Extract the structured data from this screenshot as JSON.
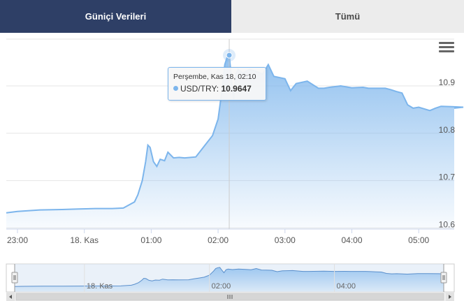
{
  "tabs": [
    {
      "label": "Güniçi Verileri",
      "active": true
    },
    {
      "label": "Tümü",
      "active": false
    }
  ],
  "tooltip": {
    "header": "Perşembe, Kas 18, 02:10",
    "series": "USD/TRY",
    "value": "10.9647"
  },
  "colors": {
    "accent": "#2e3f66",
    "series": "#7cb5ec"
  },
  "chart_data": {
    "type": "area",
    "series": [
      {
        "name": "USD/TRY",
        "x": [
          "22:53",
          "23:00",
          "23:20",
          "23:40",
          "23:55",
          "00:10",
          "00:25",
          "00:35",
          "00:45",
          "00:48",
          "00:52",
          "00:55",
          "00:57",
          "00:59",
          "01:02",
          "01:05",
          "01:08",
          "01:12",
          "01:15",
          "01:20",
          "01:25",
          "01:30",
          "01:40",
          "01:45",
          "01:50",
          "01:55",
          "02:00",
          "02:04",
          "02:06",
          "02:08",
          "02:10",
          "02:12",
          "02:14",
          "02:16",
          "02:18",
          "02:22",
          "02:28",
          "02:35",
          "02:40",
          "02:45",
          "02:50",
          "03:00",
          "03:05",
          "03:10",
          "03:20",
          "03:30",
          "03:35",
          "03:40",
          "03:50",
          "04:00",
          "04:10",
          "04:15",
          "04:20",
          "04:30",
          "04:35",
          "04:40",
          "04:45",
          "04:50",
          "04:55",
          "05:00",
          "05:10",
          "05:15",
          "05:20",
          "05:30",
          "05:40",
          "05:45"
        ],
        "values": [
          10.632,
          10.635,
          10.638,
          10.639,
          10.64,
          10.641,
          10.641,
          10.642,
          10.655,
          10.67,
          10.7,
          10.74,
          10.775,
          10.77,
          10.74,
          10.73,
          10.745,
          10.742,
          10.76,
          10.748,
          10.749,
          10.748,
          10.75,
          10.765,
          10.78,
          10.795,
          10.83,
          10.9,
          10.945,
          10.96,
          10.9647,
          10.915,
          10.872,
          10.925,
          10.935,
          10.927,
          10.935,
          10.93,
          10.925,
          10.945,
          10.92,
          10.915,
          10.89,
          10.905,
          10.91,
          10.895,
          10.895,
          10.897,
          10.9,
          10.896,
          10.897,
          10.895,
          10.895,
          10.895,
          10.892,
          10.888,
          10.885,
          10.86,
          10.853,
          10.855,
          10.848,
          10.853,
          10.857,
          10.856,
          10.855,
          10.853
        ]
      }
    ],
    "x_ticks": [
      "23:00",
      "18. Kas",
      "01:00",
      "02:00",
      "03:00",
      "04:00",
      "05:00"
    ],
    "y_ticks": [
      "10.6",
      "10.7",
      "10.8",
      "10.9"
    ],
    "ylim": [
      10.6,
      10.9
    ],
    "grid": true,
    "legend": "none",
    "navigator": {
      "labels": [
        "18. Kas",
        "02:00",
        "04:00"
      ]
    }
  }
}
